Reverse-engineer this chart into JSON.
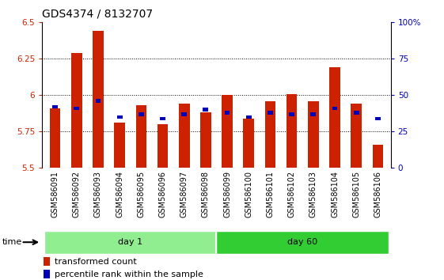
{
  "title": "GDS4374 / 8132707",
  "samples": [
    "GSM586091",
    "GSM586092",
    "GSM586093",
    "GSM586094",
    "GSM586095",
    "GSM586096",
    "GSM586097",
    "GSM586098",
    "GSM586099",
    "GSM586100",
    "GSM586101",
    "GSM586102",
    "GSM586103",
    "GSM586104",
    "GSM586105",
    "GSM586106"
  ],
  "red_values": [
    5.91,
    6.29,
    6.44,
    5.81,
    5.93,
    5.8,
    5.94,
    5.88,
    6.0,
    5.84,
    5.96,
    6.01,
    5.96,
    6.19,
    5.94,
    5.66
  ],
  "blue_values": [
    5.92,
    5.91,
    5.96,
    5.85,
    5.87,
    5.84,
    5.87,
    5.9,
    5.88,
    5.85,
    5.88,
    5.87,
    5.87,
    5.91,
    5.88,
    5.84
  ],
  "groups": [
    {
      "label": "day 1",
      "start": 0,
      "end": 7,
      "color": "#90EE90"
    },
    {
      "label": "day 60",
      "start": 8,
      "end": 15,
      "color": "#32CD32"
    }
  ],
  "ylim_left": [
    5.5,
    6.5
  ],
  "ylim_right": [
    0,
    100
  ],
  "yticks_left": [
    5.5,
    5.75,
    6.0,
    6.25,
    6.5
  ],
  "ytick_labels_left": [
    "5.5",
    "5.75",
    "6",
    "6.25",
    "6.5"
  ],
  "yticks_right": [
    0,
    25,
    50,
    75,
    100
  ],
  "ytick_labels_right": [
    "0",
    "25",
    "50",
    "75",
    "100%"
  ],
  "bar_width": 0.5,
  "red_color": "#CC2200",
  "blue_color": "#0000BB",
  "baseline": 5.5,
  "bg_plot": "#FFFFFF",
  "bg_tick_area": "#C8C8C8",
  "legend_red": "transformed count",
  "legend_blue": "percentile rank within the sample",
  "time_label": "time",
  "title_fontsize": 10,
  "tick_fontsize": 7.5,
  "label_fontsize": 7
}
